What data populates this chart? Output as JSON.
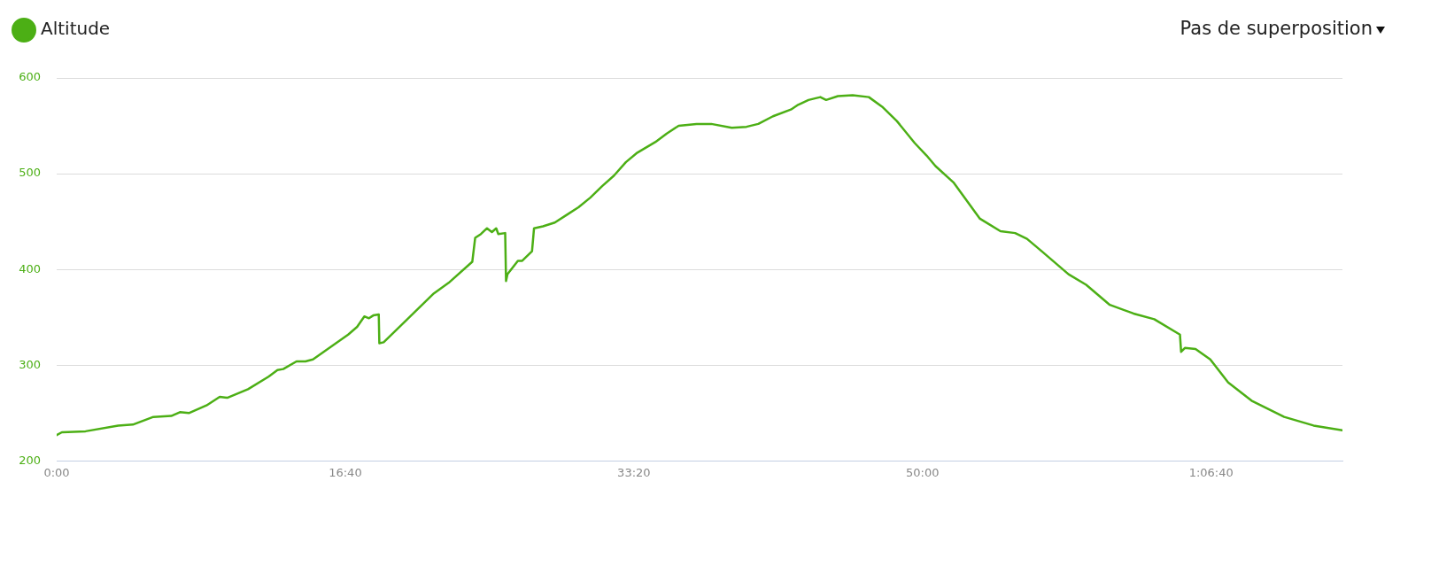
{
  "chart_data": {
    "type": "line",
    "x": [
      0,
      18,
      100,
      213,
      264,
      335,
      397,
      427,
      458,
      519,
      565,
      591,
      663,
      734,
      765,
      785,
      831,
      862,
      888,
      949,
      1010,
      1041,
      1066,
      1082,
      1097,
      1116,
      1118,
      1133,
      1215,
      1307,
      1358,
      1440,
      1450,
      1470,
      1491,
      1508,
      1523,
      1530,
      1554,
      1557,
      1562,
      1598,
      1613,
      1647,
      1654,
      1685,
      1726,
      1767,
      1808,
      1849,
      1890,
      1931,
      1972,
      2012,
      2074,
      2114,
      2155,
      2217,
      2268,
      2339,
      2390,
      2431,
      2482,
      2544,
      2569,
      2605,
      2646,
      2666,
      2707,
      2758,
      2814,
      2860,
      2911,
      2973,
      3014,
      3045,
      3107,
      3199,
      3270,
      3321,
      3362,
      3413,
      3506,
      3567,
      3649,
      3731,
      3803,
      3892,
      3896,
      3909,
      3946,
      3997,
      4059,
      4140,
      4253,
      4355,
      4455
    ],
    "series": [
      {
        "name": "Altitude",
        "color": "#4caf15",
        "values": [
          227,
          230,
          231,
          237,
          238,
          246,
          247,
          251,
          250,
          258,
          267,
          266,
          275,
          288,
          295,
          296,
          304,
          304,
          306,
          319,
          332,
          340,
          351,
          349,
          352,
          353,
          323,
          324,
          348,
          375,
          386,
          408,
          433,
          437,
          443,
          439,
          443,
          437,
          438,
          388,
          395,
          409,
          409,
          419,
          443,
          445,
          449,
          457,
          465,
          475,
          487,
          498,
          512,
          522,
          533,
          542,
          550,
          552,
          552,
          548,
          549,
          552,
          560,
          567,
          572,
          577,
          580,
          577,
          581,
          582,
          580,
          570,
          555,
          532,
          519,
          508,
          491,
          453,
          440,
          438,
          432,
          419,
          395,
          384,
          363,
          354,
          348,
          332,
          314,
          318,
          317,
          306,
          282,
          263,
          246,
          237,
          232
        ]
      }
    ],
    "xlim": [
      0,
      4455
    ],
    "xticks": [
      {
        "value": 0,
        "label": "0:00"
      },
      {
        "value": 1000,
        "label": "16:40"
      },
      {
        "value": 2000,
        "label": "33:20"
      },
      {
        "value": 3000,
        "label": "50:00"
      },
      {
        "value": 4000,
        "label": "1:06:40"
      }
    ],
    "ylim": [
      200,
      600
    ],
    "yticks": [
      200,
      300,
      400,
      500,
      600
    ],
    "grid": "y",
    "legend": "top left",
    "marker": "none",
    "annotations": [
      "Pas de superposition"
    ]
  }
}
